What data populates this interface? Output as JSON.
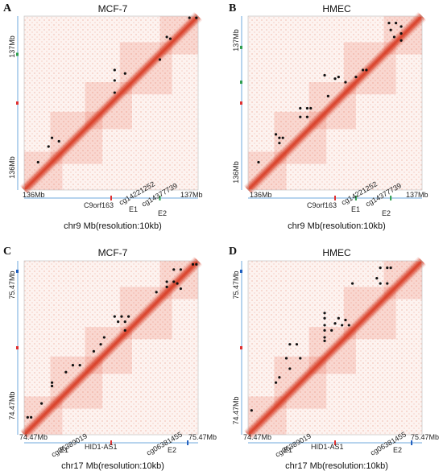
{
  "panels": [
    {
      "letter": "A",
      "title": "MCF-7",
      "y_top": "137Mb",
      "y_bottom": "136Mb",
      "x_left": "136Mb",
      "x_right": "137Mb",
      "axis_label": "chr9 Mb(resolution:10kb)",
      "genes": [
        "C9orf163",
        "cg14221252",
        "E1",
        "cg14377739",
        "E2"
      ]
    },
    {
      "letter": "B",
      "title": "HMEC",
      "y_top": "137Mb",
      "y_bottom": "136Mb",
      "x_left": "136Mb",
      "x_right": "137Mb",
      "axis_label": "chr9 Mb(resolution:10kb)",
      "genes": [
        "C9orf163",
        "cg14221252",
        "E1",
        "cg14377739",
        "E2"
      ]
    },
    {
      "letter": "C",
      "title": "MCF-7",
      "y_top": "75.47Mb",
      "y_bottom": "74.47Mb",
      "x_left": "74.47Mb",
      "x_right": "75.47Mb",
      "axis_label": "chr17 Mb(resolution:10kb)",
      "genes": [
        "cg06389019",
        "E1",
        "HID1-AS1",
        "cg06381455",
        "E2"
      ]
    },
    {
      "letter": "D",
      "title": "HMEC",
      "y_top": "75.47Mb",
      "y_bottom": "74.47Mb",
      "x_left": "74.47Mb",
      "x_right": "75.47Mb",
      "axis_label": "chr17 Mb(resolution:10kb)",
      "genes": [
        "cg06389019",
        "E1",
        "HID1-AS1",
        "cg06381455",
        "E2"
      ]
    }
  ],
  "colors": {
    "heat": "#e8452a",
    "diagonal": "#d83a22",
    "loop_dot": "#111111",
    "axis_blue": "#6fa8dc",
    "marker_red": "#e03030",
    "marker_green": "#2e9e4e",
    "marker_blue": "#1f5fbf"
  }
}
